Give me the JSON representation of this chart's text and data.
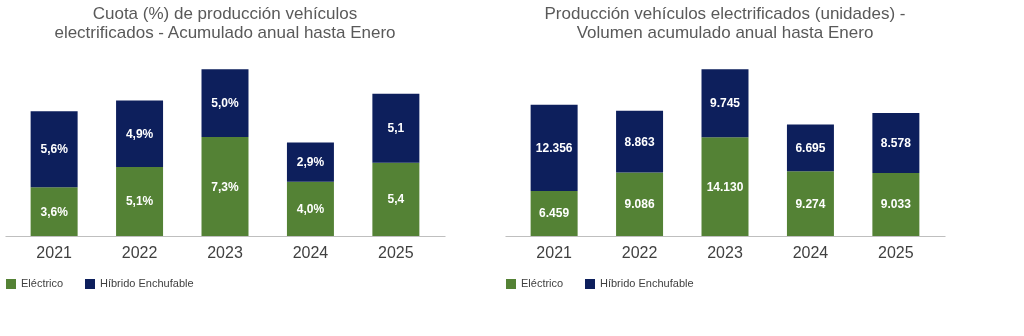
{
  "chart_data": [
    {
      "type": "bar",
      "title": "Cuota (%) de producción vehículos\nelectrificados - Acumulado anual hasta  Enero",
      "categories": [
        "2021",
        "2022",
        "2023",
        "2024",
        "2025"
      ],
      "stacked": true,
      "legend": "bottom",
      "series": [
        {
          "name": "Eléctrico",
          "color": "#548235",
          "values": [
            3.6,
            5.1,
            7.3,
            4.0,
            5.4
          ],
          "value_labels": [
            "3,6%",
            "5,1%",
            "7,3%",
            "4,0%",
            "5,4"
          ]
        },
        {
          "name": "Híbrido Enchufable",
          "color": "#0d1f5c",
          "values": [
            5.6,
            4.9,
            5.0,
            2.9,
            5.1
          ],
          "value_labels": [
            "5,6%",
            "4,9%",
            "5,0%",
            "2,9%",
            "5,1"
          ]
        }
      ]
    },
    {
      "type": "bar",
      "title": "Producción vehículos electrificados (unidades) -\nVolumen acumulado anual hasta Enero",
      "categories": [
        "2021",
        "2022",
        "2023",
        "2024",
        "2025"
      ],
      "stacked": true,
      "legend": "bottom",
      "series": [
        {
          "name": "Eléctrico",
          "color": "#548235",
          "values": [
            6459,
            9086,
            14130,
            9274,
            9033
          ],
          "value_labels": [
            "6.459",
            "9.086",
            "14.130",
            "9.274",
            "9.033"
          ]
        },
        {
          "name": "Híbrido Enchufable",
          "color": "#0d1f5c",
          "values": [
            12356,
            8863,
            9745,
            6695,
            8578
          ],
          "value_labels": [
            "12.356",
            "8.863",
            "9.745",
            "6.695",
            "8.578"
          ]
        }
      ]
    }
  ]
}
